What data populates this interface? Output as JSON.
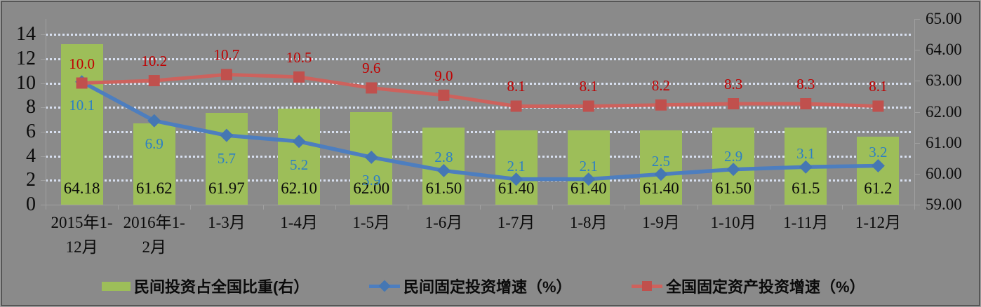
{
  "chart_data": {
    "type": "combo",
    "title": "",
    "categories": [
      "2015年1-12月",
      "2016年1-2月",
      "1-3月",
      "1-4月",
      "1-5月",
      "1-6月",
      "1-7月",
      "1-8月",
      "1-9月",
      "1-10月",
      "1-11月",
      "1-12月"
    ],
    "categories_display": [
      [
        "2015年1-",
        "12月"
      ],
      [
        "2016年1-",
        "2月"
      ],
      [
        "1-3月"
      ],
      [
        "1-4月"
      ],
      [
        "1-5月"
      ],
      [
        "1-6月"
      ],
      [
        "1-7月"
      ],
      [
        "1-8月"
      ],
      [
        "1-9月"
      ],
      [
        "1-10月"
      ],
      [
        "1-11月"
      ],
      [
        "1-12月"
      ]
    ],
    "series": [
      {
        "name": "民间投资占全国比重(右）",
        "type": "bar",
        "axis": "right",
        "color": "#9dbe59",
        "values": [
          64.18,
          61.62,
          61.97,
          62.1,
          62.0,
          61.5,
          61.4,
          61.4,
          61.4,
          61.5,
          61.5,
          61.2
        ],
        "labels": [
          "64.18",
          "61.62",
          "61.97",
          "62.10",
          "62.00",
          "61.50",
          "61.40",
          "61.40",
          "61.40",
          "61.50",
          "61.5",
          "61.2"
        ],
        "label_color": "#0b0b0b"
      },
      {
        "name": "民间固定投资增速（%）",
        "type": "line",
        "axis": "left",
        "marker": "diamond",
        "color": "#4d7ebf",
        "marker_color": "#4577b3",
        "values": [
          10.1,
          6.9,
          5.7,
          5.2,
          3.9,
          2.8,
          2.1,
          2.1,
          2.5,
          2.9,
          3.1,
          3.2
        ],
        "labels": [
          "10.1",
          "6.9",
          "5.7",
          "5.2",
          "3.9",
          "2.8",
          "2.1",
          "2.1",
          "2.5",
          "2.9",
          "3.1",
          "3.2"
        ],
        "label_color": "#2b7fc6",
        "label_positions": [
          "below",
          "below",
          "below",
          "below",
          "below",
          "above",
          "above",
          "above",
          "above",
          "above",
          "above",
          "above"
        ]
      },
      {
        "name": "全国固定资产投资增速（%）",
        "type": "line",
        "axis": "left",
        "marker": "square",
        "color": "#cd625d",
        "marker_color": "#c0504d",
        "values": [
          10.0,
          10.2,
          10.7,
          10.5,
          9.6,
          9.0,
          8.1,
          8.1,
          8.2,
          8.3,
          8.3,
          8.1
        ],
        "labels": [
          "10.0",
          "10.2",
          "10.7",
          "10.5",
          "9.6",
          "9.0",
          "8.1",
          "8.1",
          "8.2",
          "8.3",
          "8.3",
          "8.1"
        ],
        "label_color": "#c00000",
        "label_positions": [
          "above",
          "above",
          "above",
          "above",
          "above",
          "above",
          "above",
          "above",
          "above",
          "above",
          "above",
          "above"
        ]
      }
    ],
    "left_axis": {
      "min": 0,
      "max": 14,
      "step": 2,
      "tick_labels": [
        "0",
        "2",
        "4",
        "6",
        "8",
        "10",
        "12",
        "14"
      ]
    },
    "right_axis": {
      "min": 59,
      "max": 65,
      "step": 1,
      "tick_labels": [
        "59.00",
        "60.00",
        "61.00",
        "62.00",
        "63.00",
        "64.00",
        "65.00"
      ]
    },
    "legend": [
      "民间投资占全国比重(右）",
      "民间固定投资增速（%）",
      "全国固定资产投资增速（%）"
    ],
    "legend_position": "bottom",
    "grid": "horizontal-dotted"
  },
  "colors": {
    "background": "#8a8a8a",
    "gridline": "#d8e0f0",
    "axis": "#a0a0a0",
    "text": "#0b0b0b"
  }
}
